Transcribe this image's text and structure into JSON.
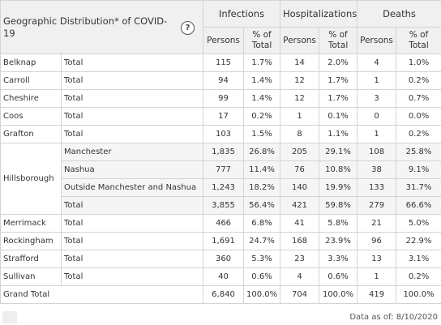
{
  "header": {
    "title": "Geographic Distribution* of COVID-19",
    "help": "?",
    "groups": [
      "Infections",
      "Hospitalizations",
      "Deaths"
    ],
    "sub": [
      "Persons",
      "% of Total",
      "Persons",
      "% of Total",
      "Persons",
      "% of Total"
    ]
  },
  "rows": [
    {
      "county": "Belknap",
      "sub": "Total",
      "v": [
        "115",
        "1.7%",
        "14",
        "2.0%",
        "4",
        "1.0%"
      ]
    },
    {
      "county": "Carroll",
      "sub": "Total",
      "v": [
        "94",
        "1.4%",
        "12",
        "1.7%",
        "1",
        "0.2%"
      ]
    },
    {
      "county": "Cheshire",
      "sub": "Total",
      "v": [
        "99",
        "1.4%",
        "12",
        "1.7%",
        "3",
        "0.7%"
      ]
    },
    {
      "county": "Coos",
      "sub": "Total",
      "v": [
        "17",
        "0.2%",
        "1",
        "0.1%",
        "0",
        "0.0%"
      ]
    },
    {
      "county": "Grafton",
      "sub": "Total",
      "v": [
        "103",
        "1.5%",
        "8",
        "1.1%",
        "1",
        "0.2%"
      ]
    }
  ],
  "hillsborough": {
    "county": "Hillsborough",
    "rows": [
      {
        "sub": "Manchester",
        "v": [
          "1,835",
          "26.8%",
          "205",
          "29.1%",
          "108",
          "25.8%"
        ]
      },
      {
        "sub": "Nashua",
        "v": [
          "777",
          "11.4%",
          "76",
          "10.8%",
          "38",
          "9.1%"
        ]
      },
      {
        "sub": "Outside Manchester and Nashua",
        "v": [
          "1,243",
          "18.2%",
          "140",
          "19.9%",
          "133",
          "31.7%"
        ]
      },
      {
        "sub": "Total",
        "v": [
          "3,855",
          "56.4%",
          "421",
          "59.8%",
          "279",
          "66.6%"
        ]
      }
    ]
  },
  "rows2": [
    {
      "county": "Merrimack",
      "sub": "Total",
      "v": [
        "466",
        "6.8%",
        "41",
        "5.8%",
        "21",
        "5.0%"
      ]
    },
    {
      "county": "Rockingham",
      "sub": "Total",
      "v": [
        "1,691",
        "24.7%",
        "168",
        "23.9%",
        "96",
        "22.9%"
      ]
    },
    {
      "county": "Strafford",
      "sub": "Total",
      "v": [
        "360",
        "5.3%",
        "23",
        "3.3%",
        "13",
        "3.1%"
      ]
    },
    {
      "county": "Sullivan",
      "sub": "Total",
      "v": [
        "40",
        "0.6%",
        "4",
        "0.6%",
        "1",
        "0.2%"
      ]
    }
  ],
  "grand_total": {
    "label": "Grand Total",
    "v": [
      "6,840",
      "100.0%",
      "704",
      "100.0%",
      "419",
      "100.0%"
    ]
  },
  "footer": {
    "data_as_of": "Data as of:  8/10/2020"
  }
}
